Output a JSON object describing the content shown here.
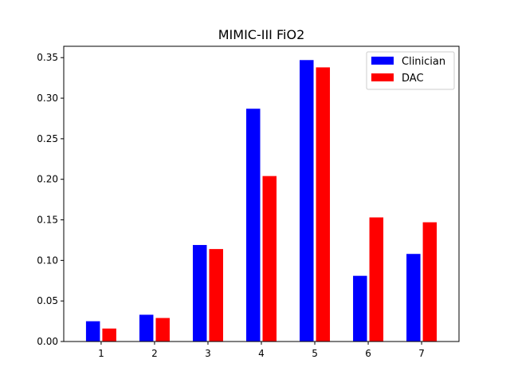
{
  "chart_data": {
    "type": "bar",
    "title": "MIMIC-III FiO2",
    "xlabel": "",
    "ylabel": "",
    "categories": [
      "1",
      "2",
      "3",
      "4",
      "5",
      "6",
      "7"
    ],
    "series": [
      {
        "name": "Clinician",
        "color": "#0000ff",
        "values": [
          0.025,
          0.033,
          0.119,
          0.287,
          0.347,
          0.081,
          0.108
        ]
      },
      {
        "name": "DAC",
        "color": "#ff0000",
        "values": [
          0.016,
          0.029,
          0.114,
          0.204,
          0.338,
          0.153,
          0.147
        ]
      }
    ],
    "ylim": [
      0,
      0.364
    ],
    "yticks": [
      "0.00",
      "0.05",
      "0.10",
      "0.15",
      "0.20",
      "0.25",
      "0.30",
      "0.35"
    ],
    "grid": false,
    "legend_position": "top-right"
  }
}
